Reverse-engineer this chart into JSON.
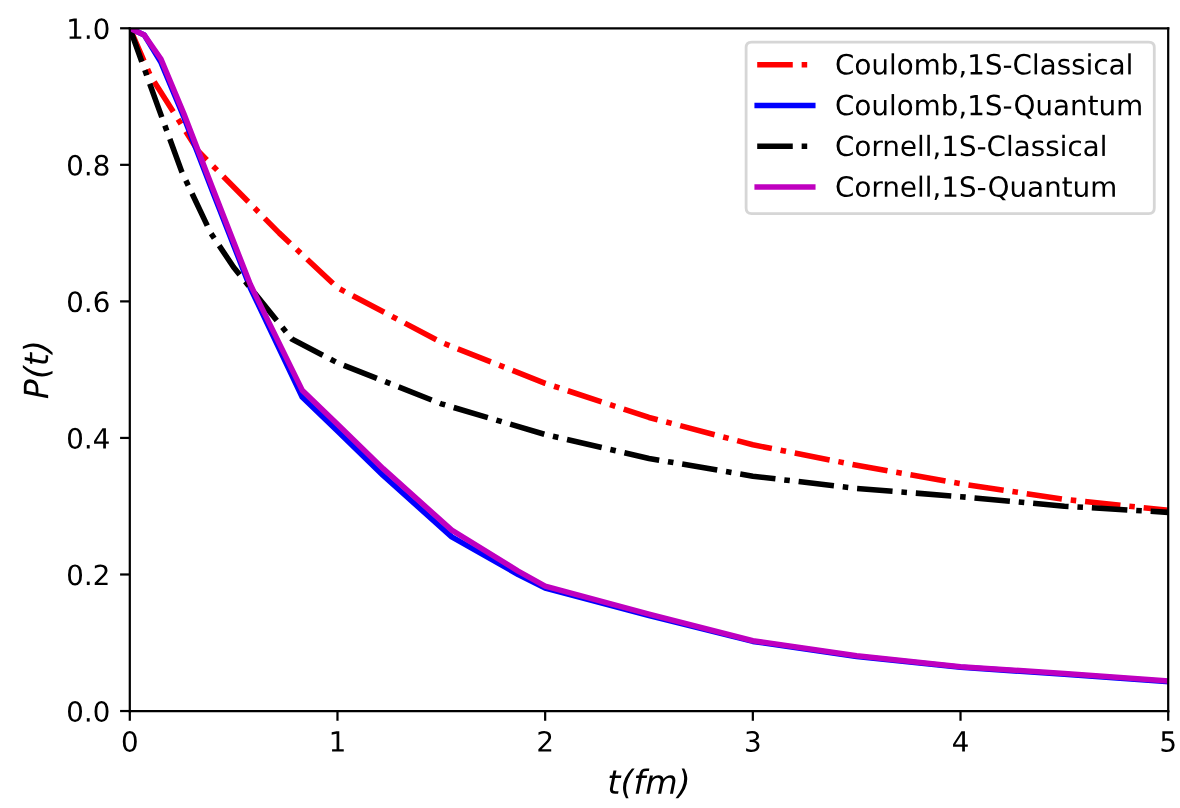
{
  "chart_data": {
    "type": "line",
    "xlabel": "t(fm)",
    "ylabel": "P(t)",
    "xlim": [
      0,
      5
    ],
    "xticks": [
      0,
      1,
      2,
      3,
      4,
      5
    ],
    "ylim": [
      0,
      1
    ],
    "yticks": [
      {
        "value": 0,
        "label": "0.0"
      },
      {
        "value": 0.2,
        "label": "0.2"
      },
      {
        "value": 0.4,
        "label": "0.4"
      },
      {
        "value": 0.6,
        "label": "0.6"
      },
      {
        "value": 0.8,
        "label": "0.8"
      },
      {
        "value": 1,
        "label": "1.0"
      }
    ],
    "grid": false,
    "legend": "top right",
    "series": [
      {
        "name": "Coulomb,1S-Classical",
        "color": "#ff0000",
        "line_style": "dashdot",
        "x": [
          0,
          0.1,
          0.33,
          0.72,
          1,
          1.5,
          2,
          2.5,
          3,
          3.5,
          4,
          4.5,
          5
        ],
        "values": [
          1.0,
          0.93,
          0.82,
          0.7,
          0.62,
          0.54,
          0.48,
          0.43,
          0.39,
          0.36,
          0.333,
          0.31,
          0.294
        ]
      },
      {
        "name": "Coulomb,1S-Quantum",
        "color": "#0000ff",
        "line_style": "solid",
        "x": [
          0,
          0.07,
          0.15,
          0.26,
          0.4,
          0.58,
          0.83,
          1,
          1.22,
          1.55,
          1.87,
          2,
          2.5,
          3,
          3.5,
          4,
          4.5,
          5
        ],
        "values": [
          1.0,
          0.99,
          0.95,
          0.87,
          0.76,
          0.62,
          0.46,
          0.41,
          0.345,
          0.255,
          0.2,
          0.18,
          0.14,
          0.102,
          0.08,
          0.064,
          0.054,
          0.043
        ]
      },
      {
        "name": "Cornell,1S-Classical",
        "color": "#000000",
        "line_style": "dashdot",
        "x": [
          0,
          0.13,
          0.25,
          0.39,
          0.5,
          0.78,
          1,
          1.5,
          2,
          2.5,
          3,
          3.5,
          4,
          4.5,
          5
        ],
        "values": [
          1.0,
          0.89,
          0.79,
          0.7,
          0.65,
          0.545,
          0.51,
          0.45,
          0.405,
          0.37,
          0.344,
          0.326,
          0.314,
          0.3,
          0.291
        ]
      },
      {
        "name": "Cornell,1S-Quantum",
        "color": "#bf00bf",
        "line_style": "solid",
        "x": [
          0,
          0.07,
          0.15,
          0.26,
          0.4,
          0.58,
          0.83,
          1,
          1.22,
          1.55,
          1.87,
          2,
          2.5,
          3,
          3.5,
          4,
          4.5,
          5
        ],
        "values": [
          1.0,
          0.99,
          0.955,
          0.875,
          0.765,
          0.625,
          0.47,
          0.42,
          0.355,
          0.265,
          0.205,
          0.183,
          0.142,
          0.103,
          0.081,
          0.065,
          0.055,
          0.044
        ]
      }
    ]
  }
}
